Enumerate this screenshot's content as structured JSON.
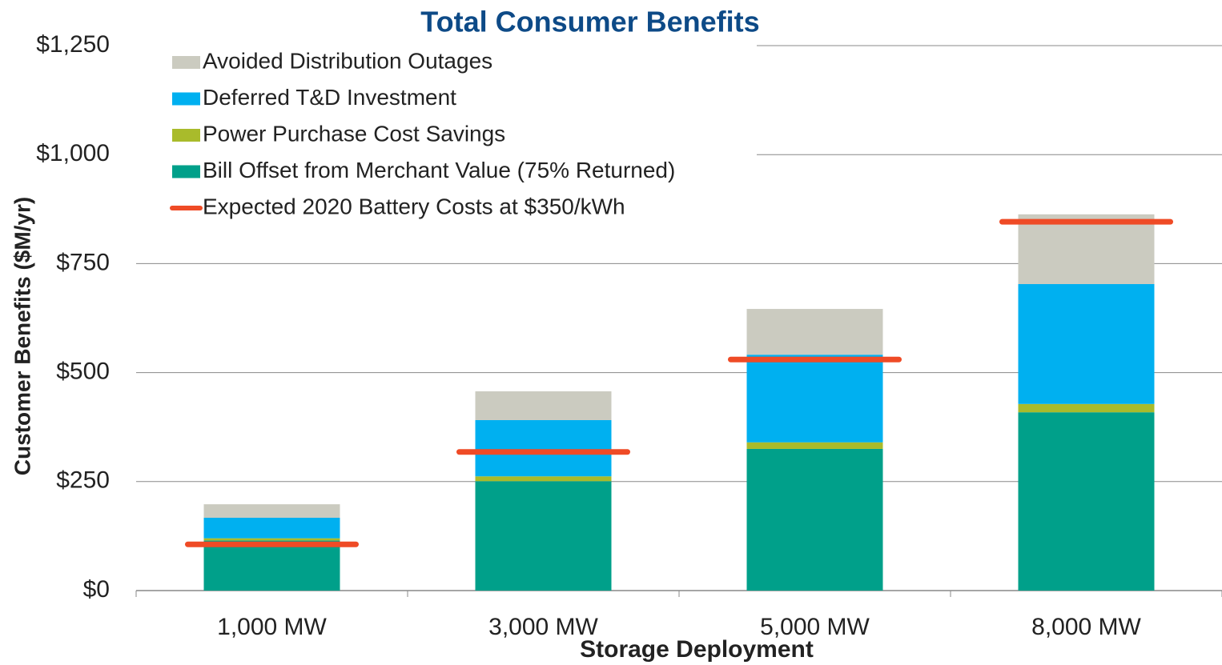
{
  "chart_data": {
    "type": "bar",
    "stacked": true,
    "title": "Total Consumer Benefits",
    "ylabel": "Customer Benefits ($M/yr)",
    "xlabel": "Storage Deployment",
    "categories": [
      "1,000 MW",
      "3,000 MW",
      "5,000 MW",
      "8,000 MW"
    ],
    "series": [
      {
        "name": "Avoided Distribution Outages",
        "color": "#cbcbc0",
        "values": [
          31,
          66,
          105,
          160
        ]
      },
      {
        "name": "Deferred T&D Investment",
        "color": "#00b0f0",
        "values": [
          47,
          129,
          201,
          275
        ]
      },
      {
        "name": "Power Purchase Cost Savings",
        "color": "#a9bb2b",
        "values": [
          5,
          11,
          15,
          19
        ]
      },
      {
        "name": "Bill Offset from Merchant Value (75% Returned)",
        "color": "#00a08a",
        "values": [
          115,
          251,
          325,
          409
        ]
      },
      {
        "name": "Expected 2020 Battery Costs at $350/kWh",
        "color": "#ef4b26",
        "type": "line",
        "values": [
          106,
          318,
          530,
          846
        ]
      }
    ],
    "ylim": [
      0,
      1250
    ],
    "yticks": [
      {
        "value": 0,
        "label": "$0"
      },
      {
        "value": 250,
        "label": "$250"
      },
      {
        "value": 500,
        "label": "$500"
      },
      {
        "value": 750,
        "label": "$750"
      },
      {
        "value": 1000,
        "label": "$1,000"
      },
      {
        "value": 1250,
        "label": "$1,250"
      }
    ],
    "grid": true,
    "legend": "upper left"
  }
}
